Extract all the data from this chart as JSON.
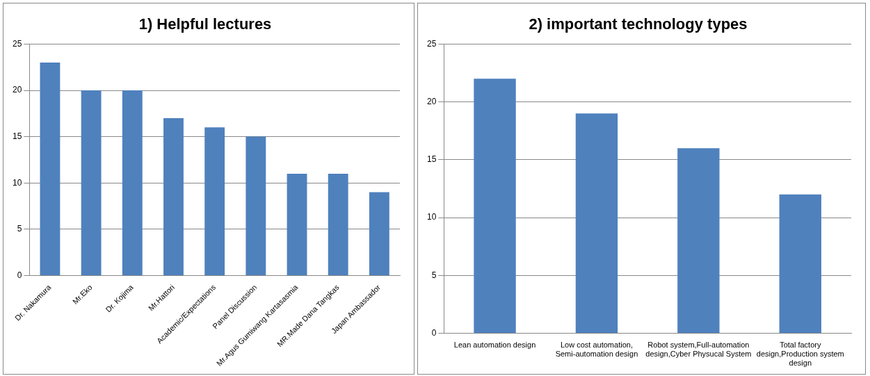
{
  "chart_data": [
    {
      "type": "bar",
      "title": "1) Helpful lectures",
      "categories": [
        "Dr. Nakamura",
        "Mr.Eko",
        "Dr. Kojima",
        "Mr.Hattori",
        "Academic/Expectations",
        "Panel Discussion",
        "Mr.Agus Gumiwang Kartasasmia",
        "MR.Made Dana Tangkas",
        "Japan Ambassador"
      ],
      "values": [
        23,
        20,
        20,
        17,
        16,
        15,
        11,
        11,
        9
      ],
      "color": "#4f81bd",
      "ylim": [
        0,
        25
      ],
      "yticks": [
        0,
        5,
        10,
        15,
        20,
        25
      ],
      "grid": "y",
      "legend": false
    },
    {
      "type": "bar",
      "title": "2) important technology types",
      "categories": [
        "Lean automation design",
        "Low cost automation, Semi-automation design",
        "Robot system,Full-automation design,Cyber Physucal System",
        "Total factory design,Production system design"
      ],
      "values": [
        22,
        19,
        16,
        12
      ],
      "color": "#4f81bd",
      "ylim": [
        0,
        25
      ],
      "yticks": [
        0,
        5,
        10,
        15,
        20,
        25
      ],
      "grid": "y",
      "legend": false
    }
  ]
}
